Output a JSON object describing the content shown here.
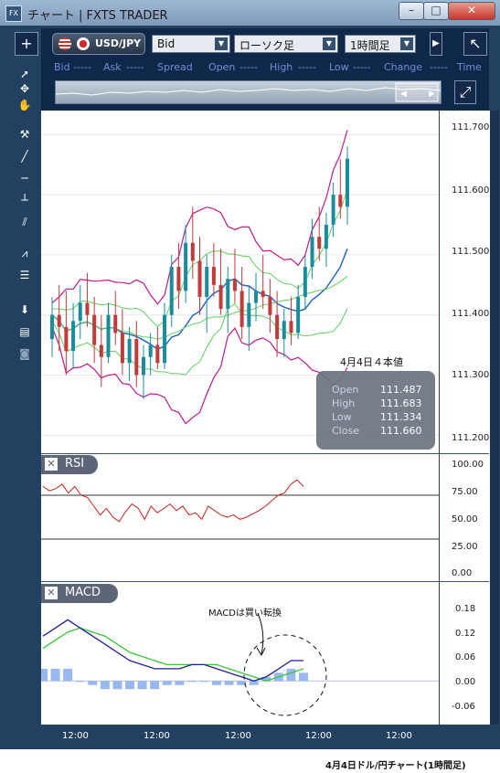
{
  "window": {
    "title": "チャート | FXTS TRADER",
    "icon_text": "FX"
  },
  "toolbar": {
    "add_label": "+",
    "pair": "USD/JPY",
    "price_type": "Bid",
    "chart_type": "ローソク足",
    "timeframe": "1時間足",
    "quote_headers": {
      "bid": "Bid",
      "ask": "Ask",
      "spread": "Spread",
      "open": "Open",
      "high": "High",
      "low": "Low",
      "change": "Change",
      "time": "Time",
      "placeholder": "-----"
    }
  },
  "info_box": {
    "title": "4月4日４本値",
    "rows": [
      {
        "label": "Open",
        "value": "111.487"
      },
      {
        "label": "High",
        "value": "111.683"
      },
      {
        "label": "Low",
        "value": "111.334"
      },
      {
        "label": "Close",
        "value": "111.660"
      }
    ]
  },
  "panels": {
    "rsi": "RSI",
    "macd": "MACD",
    "close": "✕"
  },
  "annotation": "MACDは買い転換",
  "caption": "4月4日ドル/円チャート(1時間足)",
  "colors": {
    "up": "#1a8c9a",
    "down": "#c23a3a",
    "bb": "#c2188f",
    "ma_green": "#5fd060",
    "ma_blue": "#1b5fbf",
    "rsi": "#c8231d",
    "macd": "#1f1f9a",
    "signal": "#38c838",
    "hist": "#9ab8f0"
  },
  "chart_data": [
    {
      "type": "line",
      "title": "",
      "xlabel": "",
      "ylabel": "",
      "xticks": [
        "12:00",
        "12:00",
        "12:00",
        "12:00",
        "12:00"
      ],
      "yticks": [
        "111.200",
        "111.300",
        "111.400",
        "111.500",
        "111.600",
        "111.700"
      ],
      "ylim": [
        111.17,
        111.74
      ],
      "ohlc": [
        [
          111.36,
          111.43,
          111.33,
          111.4
        ],
        [
          111.4,
          111.45,
          111.34,
          111.38
        ],
        [
          111.38,
          111.44,
          111.3,
          111.34
        ],
        [
          111.34,
          111.42,
          111.31,
          111.39
        ],
        [
          111.39,
          111.45,
          111.36,
          111.42
        ],
        [
          111.42,
          111.47,
          111.38,
          111.4
        ],
        [
          111.4,
          111.43,
          111.32,
          111.35
        ],
        [
          111.35,
          111.4,
          111.28,
          111.33
        ],
        [
          111.33,
          111.42,
          111.32,
          111.4
        ],
        [
          111.4,
          111.44,
          111.35,
          111.37
        ],
        [
          111.37,
          111.41,
          111.3,
          111.32
        ],
        [
          111.32,
          111.38,
          111.29,
          111.36
        ],
        [
          111.36,
          111.39,
          111.28,
          111.3
        ],
        [
          111.3,
          111.35,
          111.26,
          111.33
        ],
        [
          111.33,
          111.37,
          111.3,
          111.35
        ],
        [
          111.35,
          111.38,
          111.31,
          111.32
        ],
        [
          111.32,
          111.42,
          111.31,
          111.4
        ],
        [
          111.4,
          111.5,
          111.38,
          111.48
        ],
        [
          111.48,
          111.52,
          111.41,
          111.44
        ],
        [
          111.44,
          111.55,
          111.42,
          111.52
        ],
        [
          111.52,
          111.58,
          111.46,
          111.49
        ],
        [
          111.49,
          111.53,
          111.4,
          111.43
        ],
        [
          111.43,
          111.5,
          111.37,
          111.48
        ],
        [
          111.48,
          111.52,
          111.43,
          111.45
        ],
        [
          111.45,
          111.51,
          111.4,
          111.41
        ],
        [
          111.41,
          111.48,
          111.37,
          111.46
        ],
        [
          111.46,
          111.51,
          111.42,
          111.44
        ],
        [
          111.44,
          111.48,
          111.36,
          111.38
        ],
        [
          111.38,
          111.45,
          111.34,
          111.42
        ],
        [
          111.42,
          111.47,
          111.39,
          111.44
        ],
        [
          111.44,
          111.5,
          111.41,
          111.43
        ],
        [
          111.43,
          111.46,
          111.37,
          111.4
        ],
        [
          111.4,
          111.44,
          111.33,
          111.36
        ],
        [
          111.36,
          111.41,
          111.33,
          111.39
        ],
        [
          111.39,
          111.43,
          111.35,
          111.37
        ],
        [
          111.37,
          111.45,
          111.36,
          111.43
        ],
        [
          111.43,
          111.5,
          111.41,
          111.48
        ],
        [
          111.48,
          111.56,
          111.46,
          111.53
        ],
        [
          111.53,
          111.58,
          111.49,
          111.51
        ],
        [
          111.51,
          111.57,
          111.48,
          111.55
        ],
        [
          111.55,
          111.62,
          111.53,
          111.6
        ],
        [
          111.6,
          111.66,
          111.56,
          111.58
        ],
        [
          111.58,
          111.68,
          111.55,
          111.66
        ]
      ]
    },
    {
      "type": "line",
      "title": "",
      "yticks": [
        "100.00",
        "75.00",
        "50.00",
        "25.00",
        "0.00"
      ],
      "ylim": [
        0,
        100
      ],
      "values": [
        78,
        74,
        76,
        80,
        72,
        78,
        70,
        68,
        60,
        52,
        58,
        50,
        46,
        55,
        62,
        58,
        48,
        60,
        54,
        58,
        62,
        56,
        60,
        52,
        54,
        48,
        60,
        56,
        52,
        50,
        52,
        48,
        50,
        53,
        56,
        60,
        65,
        70,
        72,
        80,
        84,
        78
      ]
    },
    {
      "type": "line",
      "title": "",
      "yticks": [
        "0.18",
        "0.12",
        "0.06",
        "0.00",
        "-0.06"
      ],
      "ylim": [
        -0.08,
        0.2
      ],
      "series": [
        {
          "values": [
            0.11,
            0.13,
            0.15,
            0.13,
            0.11,
            0.09,
            0.07,
            0.05,
            0.04,
            0.03,
            0.03,
            0.03,
            0.04,
            0.04,
            0.03,
            0.02,
            0.01,
            0.0,
            0.01,
            0.03,
            0.05,
            0.05
          ]
        },
        {
          "values": [
            0.08,
            0.1,
            0.12,
            0.13,
            0.12,
            0.11,
            0.09,
            0.07,
            0.06,
            0.05,
            0.04,
            0.04,
            0.04,
            0.04,
            0.04,
            0.03,
            0.02,
            0.01,
            0.0,
            0.01,
            0.02,
            0.03
          ]
        },
        {
          "values": [
            0.03,
            0.03,
            0.03,
            0.0,
            -0.01,
            -0.02,
            -0.02,
            -0.02,
            -0.02,
            -0.02,
            -0.01,
            -0.01,
            0.0,
            0.0,
            -0.01,
            -0.01,
            -0.01,
            -0.01,
            0.01,
            0.02,
            0.03,
            0.02
          ]
        }
      ]
    }
  ]
}
